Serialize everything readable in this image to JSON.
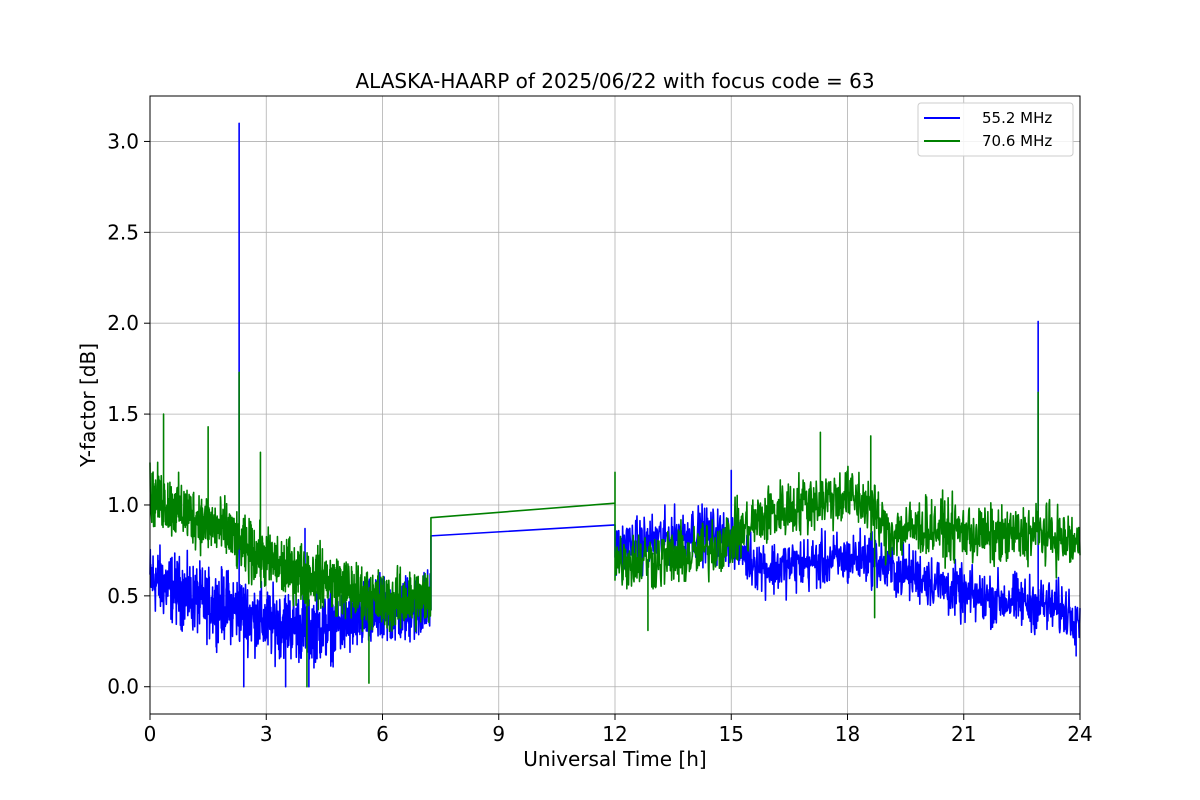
{
  "chart_data": {
    "type": "line",
    "title": "ALASKA-HAARP of 2025/06/22 with focus code = 63",
    "xlabel": "Universal Time [h]",
    "ylabel": "Y-factor [dB]",
    "xlim": [
      0,
      24
    ],
    "ylim": [
      -0.15,
      3.25
    ],
    "xticks": [
      0,
      3,
      6,
      9,
      12,
      15,
      18,
      21,
      24
    ],
    "xtick_labels": [
      "0",
      "3",
      "6",
      "9",
      "12",
      "15",
      "18",
      "21",
      "24"
    ],
    "yticks": [
      0.0,
      0.5,
      1.0,
      1.5,
      2.0,
      2.5,
      3.0
    ],
    "ytick_labels": [
      "0.0",
      "0.5",
      "1.0",
      "1.5",
      "2.0",
      "2.5",
      "3.0"
    ],
    "grid": true,
    "legend_position": "top-right",
    "series": [
      {
        "name": "55.2 MHz",
        "color": "#0000ff",
        "segments": [
          {
            "x_start": 0.0,
            "x_end": 7.25,
            "trend": [
              [
                0.0,
                0.6
              ],
              [
                0.5,
                0.55
              ],
              [
                1.0,
                0.5
              ],
              [
                1.5,
                0.45
              ],
              [
                2.0,
                0.45
              ],
              [
                2.5,
                0.4
              ],
              [
                3.0,
                0.35
              ],
              [
                3.5,
                0.35
              ],
              [
                4.0,
                0.32
              ],
              [
                4.5,
                0.33
              ],
              [
                5.0,
                0.35
              ],
              [
                5.5,
                0.38
              ],
              [
                6.0,
                0.4
              ],
              [
                6.5,
                0.42
              ],
              [
                7.25,
                0.45
              ]
            ],
            "spread": 0.25,
            "spikes": [
              [
                2.3,
                3.1
              ],
              [
                2.42,
                0.0
              ],
              [
                3.5,
                0.0
              ],
              [
                4.1,
                0.0
              ],
              [
                4.0,
                0.87
              ]
            ]
          },
          {
            "x_start": 7.25,
            "x_end": 12.0,
            "trend": [
              [
                7.25,
                0.83
              ],
              [
                12.0,
                0.89
              ]
            ],
            "spread": 0.0,
            "spikes": []
          },
          {
            "x_start": 12.0,
            "x_end": 24.0,
            "trend": [
              [
                12.0,
                0.75
              ],
              [
                13.0,
                0.8
              ],
              [
                14.0,
                0.85
              ],
              [
                15.0,
                0.82
              ],
              [
                15.5,
                0.7
              ],
              [
                16.0,
                0.65
              ],
              [
                17.0,
                0.68
              ],
              [
                18.0,
                0.7
              ],
              [
                18.6,
                0.72
              ],
              [
                19.0,
                0.65
              ],
              [
                20.0,
                0.6
              ],
              [
                21.0,
                0.5
              ],
              [
                22.0,
                0.48
              ],
              [
                23.0,
                0.45
              ],
              [
                24.0,
                0.4
              ]
            ],
            "spread": 0.2,
            "spikes": [
              [
                22.92,
                2.01
              ],
              [
                15.0,
                1.19
              ],
              [
                23.9,
                0.17
              ]
            ]
          }
        ]
      },
      {
        "name": "70.6 MHz",
        "color": "#008000",
        "segments": [
          {
            "x_start": 0.0,
            "x_end": 7.25,
            "trend": [
              [
                0.0,
                1.05
              ],
              [
                0.5,
                1.0
              ],
              [
                1.0,
                0.95
              ],
              [
                1.5,
                0.9
              ],
              [
                2.0,
                0.85
              ],
              [
                2.5,
                0.75
              ],
              [
                3.0,
                0.7
              ],
              [
                3.5,
                0.65
              ],
              [
                4.0,
                0.62
              ],
              [
                4.5,
                0.6
              ],
              [
                5.0,
                0.55
              ],
              [
                5.5,
                0.5
              ],
              [
                6.0,
                0.47
              ],
              [
                6.5,
                0.47
              ],
              [
                7.25,
                0.5
              ]
            ],
            "spread": 0.22,
            "spikes": [
              [
                2.3,
                1.73
              ],
              [
                0.35,
                1.5
              ],
              [
                1.5,
                1.43
              ],
              [
                2.85,
                1.29
              ],
              [
                4.05,
                0.0
              ],
              [
                5.65,
                0.02
              ]
            ]
          },
          {
            "x_start": 7.25,
            "x_end": 12.0,
            "trend": [
              [
                7.25,
                0.93
              ],
              [
                12.0,
                1.01
              ]
            ],
            "spread": 0.0,
            "spikes": []
          },
          {
            "x_start": 12.0,
            "x_end": 24.0,
            "trend": [
              [
                12.0,
                0.7
              ],
              [
                13.0,
                0.7
              ],
              [
                14.0,
                0.72
              ],
              [
                15.0,
                0.82
              ],
              [
                16.0,
                0.95
              ],
              [
                17.0,
                1.02
              ],
              [
                18.0,
                1.05
              ],
              [
                18.6,
                1.0
              ],
              [
                19.0,
                0.85
              ],
              [
                20.0,
                0.88
              ],
              [
                21.0,
                0.85
              ],
              [
                22.0,
                0.82
              ],
              [
                23.0,
                0.85
              ],
              [
                24.0,
                0.78
              ]
            ],
            "spread": 0.22,
            "spikes": [
              [
                12.0,
                1.18
              ],
              [
                17.3,
                1.4
              ],
              [
                18.6,
                1.38
              ],
              [
                22.92,
                1.62
              ],
              [
                12.85,
                0.31
              ],
              [
                18.7,
                0.38
              ]
            ]
          }
        ]
      }
    ]
  }
}
